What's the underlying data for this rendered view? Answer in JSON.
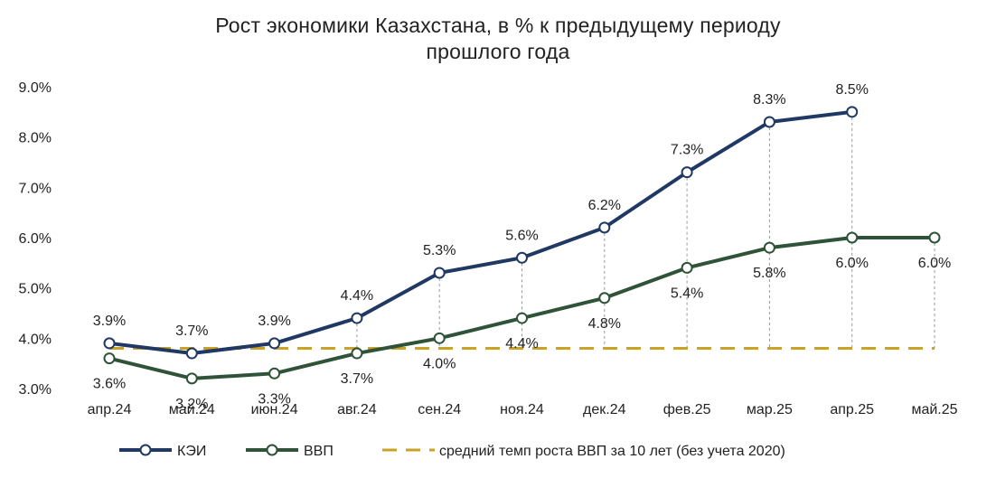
{
  "chart_data": {
    "type": "line",
    "title": [
      "Рост экономики Казахстана, в % к предыдущему периоду",
      "прошлого года"
    ],
    "categories": [
      "апр.24",
      "май.24",
      "июн.24",
      "авг.24",
      "сен.24",
      "ноя.24",
      "дек.24",
      "фев.25",
      "мар.25",
      "апр.25",
      "май.25"
    ],
    "ylim": [
      3.0,
      9.0
    ],
    "yticks": [
      "3.0%",
      "4.0%",
      "5.0%",
      "6.0%",
      "7.0%",
      "8.0%",
      "9.0%"
    ],
    "grid": false,
    "legend_position": "bottom",
    "series": [
      {
        "name": "КЭИ",
        "color": "#1f3864",
        "values": [
          3.9,
          3.7,
          3.9,
          4.4,
          5.3,
          5.6,
          6.2,
          7.3,
          8.3,
          8.5,
          null
        ],
        "labels": [
          "3.9%",
          "3.7%",
          "3.9%",
          "4.4%",
          "5.3%",
          "5.6%",
          "6.2%",
          "7.3%",
          "8.3%",
          "8.5%",
          null
        ]
      },
      {
        "name": "ВВП",
        "color": "#2e5339",
        "values": [
          3.6,
          3.2,
          3.3,
          3.7,
          4.0,
          4.4,
          4.8,
          5.4,
          5.8,
          6.0,
          6.0
        ],
        "labels": [
          "3.6%",
          "3.2%",
          "3.3%",
          "3.7%",
          "4.0%",
          "4.4%",
          "4.8%",
          "5.4%",
          "5.8%",
          "6.0%",
          "6.0%"
        ]
      },
      {
        "name": "средний темп роста ВВП за 10 лет (без учета 2020)",
        "color": "#c9a227",
        "style": "dashed",
        "values": [
          3.8,
          3.8,
          3.8,
          3.8,
          3.8,
          3.8,
          3.8,
          3.8,
          3.8,
          3.8,
          3.8
        ]
      }
    ]
  }
}
